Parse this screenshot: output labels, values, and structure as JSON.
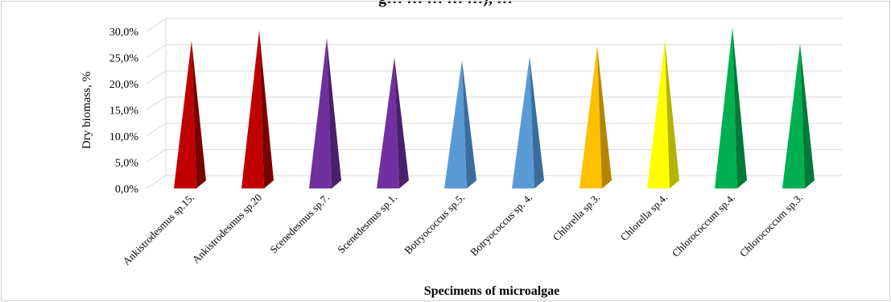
{
  "chart_data": {
    "type": "bar",
    "bar_shape": "pyramid-3d",
    "title": "g… … … … …), …",
    "xlabel": "Specimens of microalgae",
    "ylabel": "Dry biomass, %",
    "ylim": [
      0,
      30
    ],
    "y_ticks": [
      "0,0%",
      "5,0%",
      "10,0%",
      "15,0%",
      "20,0%",
      "25,0%",
      "30,0%"
    ],
    "y_tick_values": [
      0,
      5,
      10,
      15,
      20,
      25,
      30
    ],
    "grid": true,
    "legend": "none",
    "categories": [
      "Ankistrodesmus sp.15.",
      "Ankistrodesmus sp.20",
      "Scenedesmus sp.7.",
      "Scenedesmus sp.1.",
      "Botryococcus sp.5.",
      "Botryococcus sp. 4.",
      "Chlorella sp.3.",
      "Chlorella sp.4.",
      "Chlorococcum sp.4.",
      "Chlorococcum sp.3."
    ],
    "values": [
      27.0,
      29.0,
      27.5,
      23.8,
      23.3,
      24.0,
      26.0,
      27.0,
      29.5,
      26.5
    ],
    "colors": [
      "#c00000",
      "#c00000",
      "#7030a0",
      "#7030a0",
      "#5b9bd5",
      "#5b9bd5",
      "#ffc000",
      "#ffff00",
      "#00b050",
      "#00b050"
    ],
    "shade_colors": [
      "#7a0000",
      "#7a0000",
      "#4a1f6b",
      "#4a1f6b",
      "#3a6d9c",
      "#3a6d9c",
      "#b38600",
      "#b3b300",
      "#007a38",
      "#007a38"
    ]
  }
}
